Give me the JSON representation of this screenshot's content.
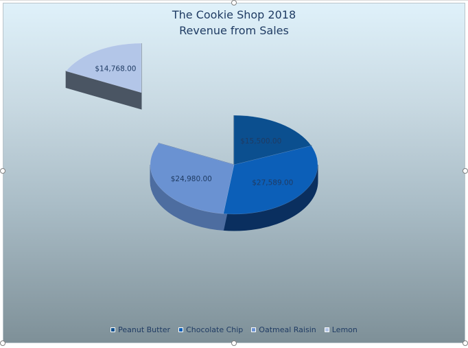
{
  "chart_data": {
    "type": "pie",
    "title": "The Cookie Shop 2018",
    "subtitle": "Revenue from Sales",
    "slices": [
      {
        "name": "Peanut Butter",
        "value": 15500,
        "label": "$15,500.00",
        "color": "#0b4f8f",
        "side_color": "#083661"
      },
      {
        "name": "Chocolate Chip",
        "value": 27589,
        "label": "$27,589.00",
        "color": "#0c5fb8",
        "side_color": "#0a2f5f"
      },
      {
        "name": "Oatmeal Raisin",
        "value": 24980,
        "label": "$24,980.00",
        "color": "#6a92d2",
        "side_color": "#4d6da0"
      },
      {
        "name": "Lemon",
        "value": 14768,
        "label": "$14,768.00",
        "color": "#b3c6e8",
        "side_color": "#4a5563",
        "exploded": true
      }
    ],
    "legend_position": "bottom",
    "three_d": true
  }
}
